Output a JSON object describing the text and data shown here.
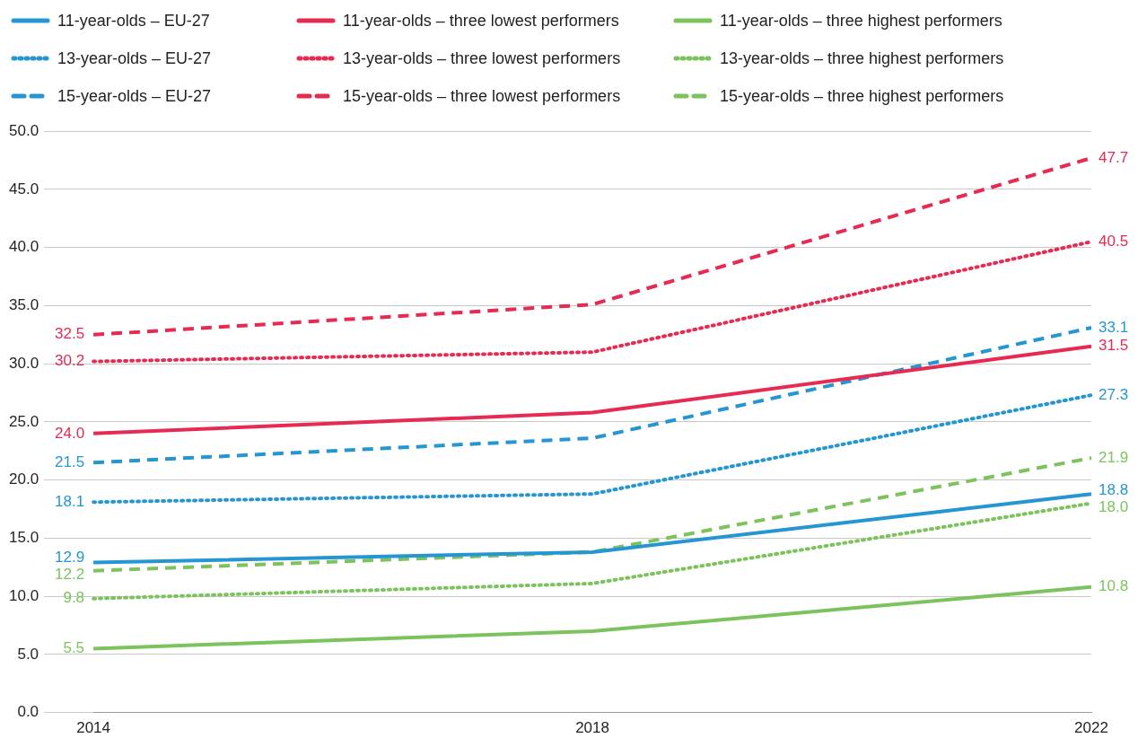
{
  "chart_data": {
    "type": "line",
    "categories": [
      "2014",
      "2018",
      "2022"
    ],
    "series": [
      {
        "name": "11-year-olds – EU-27",
        "color": "#2596d1",
        "line_style": "solid",
        "values": [
          12.9,
          13.8,
          18.8
        ],
        "value_labels": [
          "12.9",
          null,
          "18.8"
        ]
      },
      {
        "name": "11-year-olds – three lowest performers",
        "color": "#e62a52",
        "line_style": "solid",
        "values": [
          24.0,
          25.8,
          31.5
        ],
        "value_labels": [
          "24.0",
          null,
          "31.5"
        ]
      },
      {
        "name": "11-year-olds – three highest performers",
        "color": "#7cc35e",
        "line_style": "solid",
        "values": [
          5.5,
          7.0,
          10.8
        ],
        "value_labels": [
          "5.5",
          null,
          "10.8"
        ]
      },
      {
        "name": "13-year-olds – EU-27",
        "color": "#2596d1",
        "line_style": "dotted",
        "values": [
          18.1,
          18.8,
          27.3
        ],
        "value_labels": [
          "18.1",
          null,
          "27.3"
        ]
      },
      {
        "name": "13-year-olds – three lowest performers",
        "color": "#e62a52",
        "line_style": "dotted",
        "values": [
          30.2,
          31.0,
          40.5
        ],
        "value_labels": [
          "30.2",
          null,
          "40.5"
        ]
      },
      {
        "name": "13-year-olds – three highest performers",
        "color": "#7cc35e",
        "line_style": "dotted",
        "values": [
          9.8,
          11.1,
          18.0
        ],
        "value_labels": [
          "9.8",
          null,
          "18.0"
        ]
      },
      {
        "name": "15-year-olds – EU-27",
        "color": "#2596d1",
        "line_style": "dashed",
        "values": [
          21.5,
          23.6,
          33.1
        ],
        "value_labels": [
          "21.5",
          null,
          "33.1"
        ]
      },
      {
        "name": "15-year-olds – three lowest performers",
        "color": "#e62a52",
        "line_style": "dashed",
        "values": [
          32.5,
          35.1,
          47.7
        ],
        "value_labels": [
          "32.5",
          null,
          "47.7"
        ]
      },
      {
        "name": "15-year-olds – three highest performers",
        "color": "#7cc35e",
        "line_style": "dashed",
        "values": [
          12.2,
          13.8,
          21.9
        ],
        "value_labels": [
          "12.2",
          null,
          "21.9"
        ]
      }
    ],
    "ylim": [
      0,
      50
    ],
    "yticks": [
      {
        "value": 0,
        "label": "0.0"
      },
      {
        "value": 5,
        "label": "5.0"
      },
      {
        "value": 10,
        "label": "10.0"
      },
      {
        "value": 15,
        "label": "15.0"
      },
      {
        "value": 20,
        "label": "20.0"
      },
      {
        "value": 25,
        "label": "25.0"
      },
      {
        "value": 30,
        "label": "30.0"
      },
      {
        "value": 35,
        "label": "35.0"
      },
      {
        "value": 40,
        "label": "40.0"
      },
      {
        "value": 45,
        "label": "45.0"
      },
      {
        "value": 50,
        "label": "50.0"
      }
    ],
    "grid": "y",
    "legend": "top",
    "marker": "none"
  }
}
